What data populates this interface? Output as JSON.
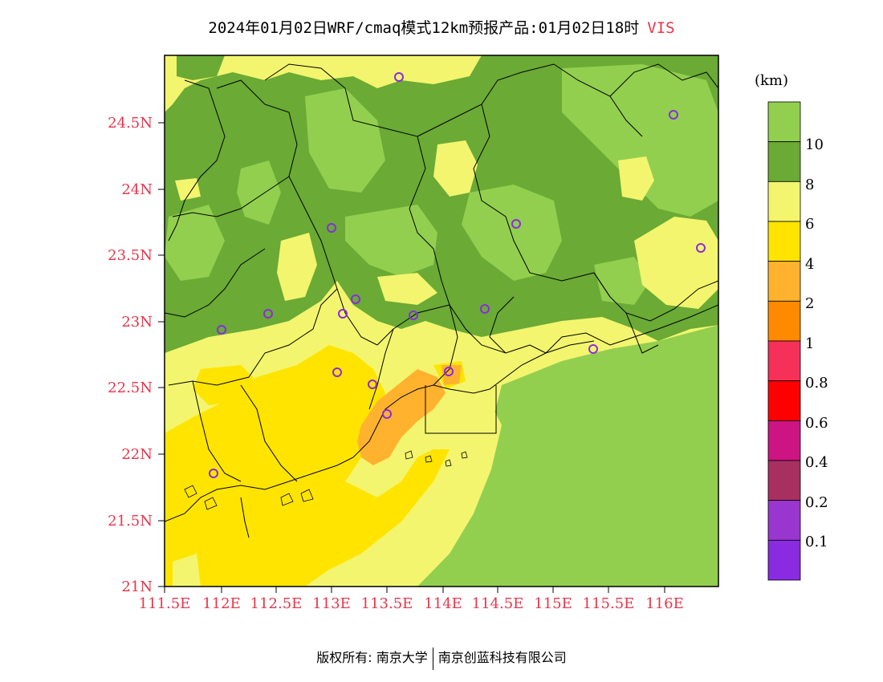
{
  "title": {
    "main": "2024年01月02日WRF/cmaq模式12km预报产品:01月02日18时",
    "variable": "VIS"
  },
  "axes": {
    "y_ticks": [
      "24.5N",
      "24N",
      "23.5N",
      "23N",
      "22.5N",
      "22N",
      "21.5N",
      "21N"
    ],
    "x_ticks": [
      "111.5E",
      "112E",
      "112.5E",
      "113E",
      "113.5E",
      "114E",
      "114.5E",
      "115E",
      "115.5E",
      "116E"
    ],
    "tick_color": "#e8354a"
  },
  "legend": {
    "unit": "(km)",
    "labels": [
      "10",
      "8",
      "6",
      "4",
      "2",
      "1",
      "0.8",
      "0.6",
      "0.4",
      "0.2",
      "0.1"
    ],
    "colors": [
      "#92cf4f",
      "#6aaa35",
      "#f3f56e",
      "#ffe400",
      "#ffb22e",
      "#ff8a00",
      "#f5315a",
      "#ff0000",
      "#cc1483",
      "#a83060",
      "#9a36d0",
      "#8a2be2"
    ]
  },
  "stations_color": "#8a2be2",
  "footer": {
    "left": "版权所有: 南京大学",
    "right": "南京创蓝科技有限公司"
  }
}
